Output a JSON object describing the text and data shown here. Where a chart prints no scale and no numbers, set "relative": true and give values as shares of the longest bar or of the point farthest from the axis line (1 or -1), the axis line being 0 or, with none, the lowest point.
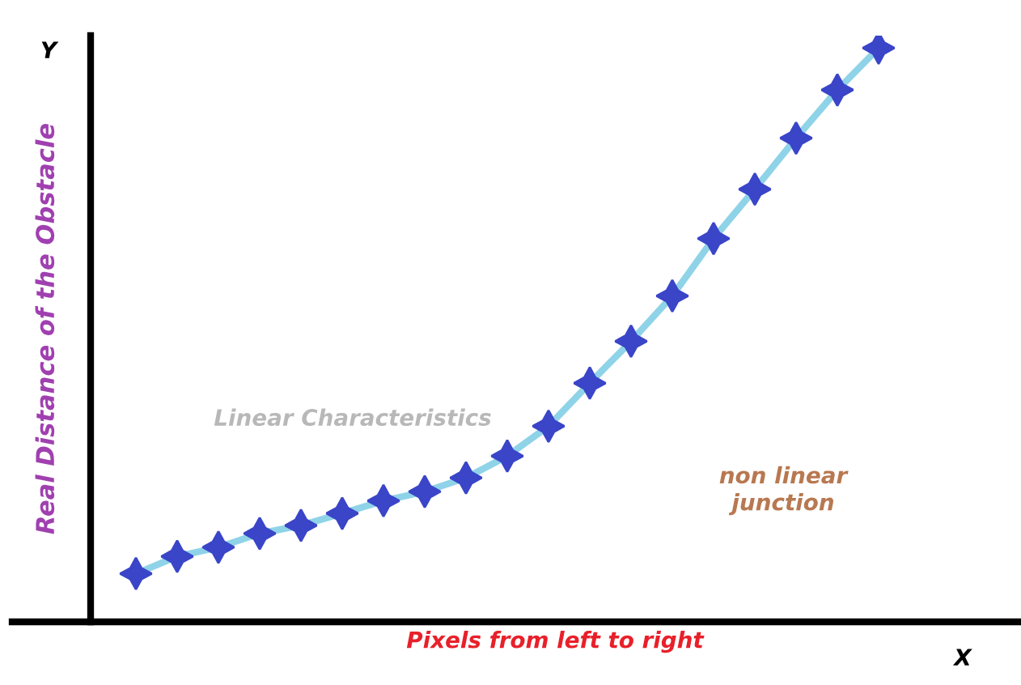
{
  "chart_data": {
    "type": "line",
    "relative": true,
    "xlabel": "Pixels from left to right",
    "ylabel": "Real Distance of the Obstacle",
    "categories": [
      null,
      null,
      null,
      null,
      null,
      null,
      null,
      null,
      null,
      null,
      null,
      null,
      null,
      null,
      null,
      null,
      null,
      null,
      null
    ],
    "series": [
      {
        "color": "#8fd3e8",
        "values": [
          0.084,
          0.114,
          0.13,
          0.154,
          0.168,
          0.189,
          0.211,
          0.227,
          0.251,
          0.289,
          0.341,
          0.416,
          0.489,
          0.568,
          0.668,
          0.754,
          0.843,
          0.927,
          1
        ]
      }
    ],
    "marker": "star",
    "line_style": "solid",
    "annotations": [
      "Y",
      "X",
      "Linear Characteristics",
      "non linear\njunction"
    ]
  }
}
